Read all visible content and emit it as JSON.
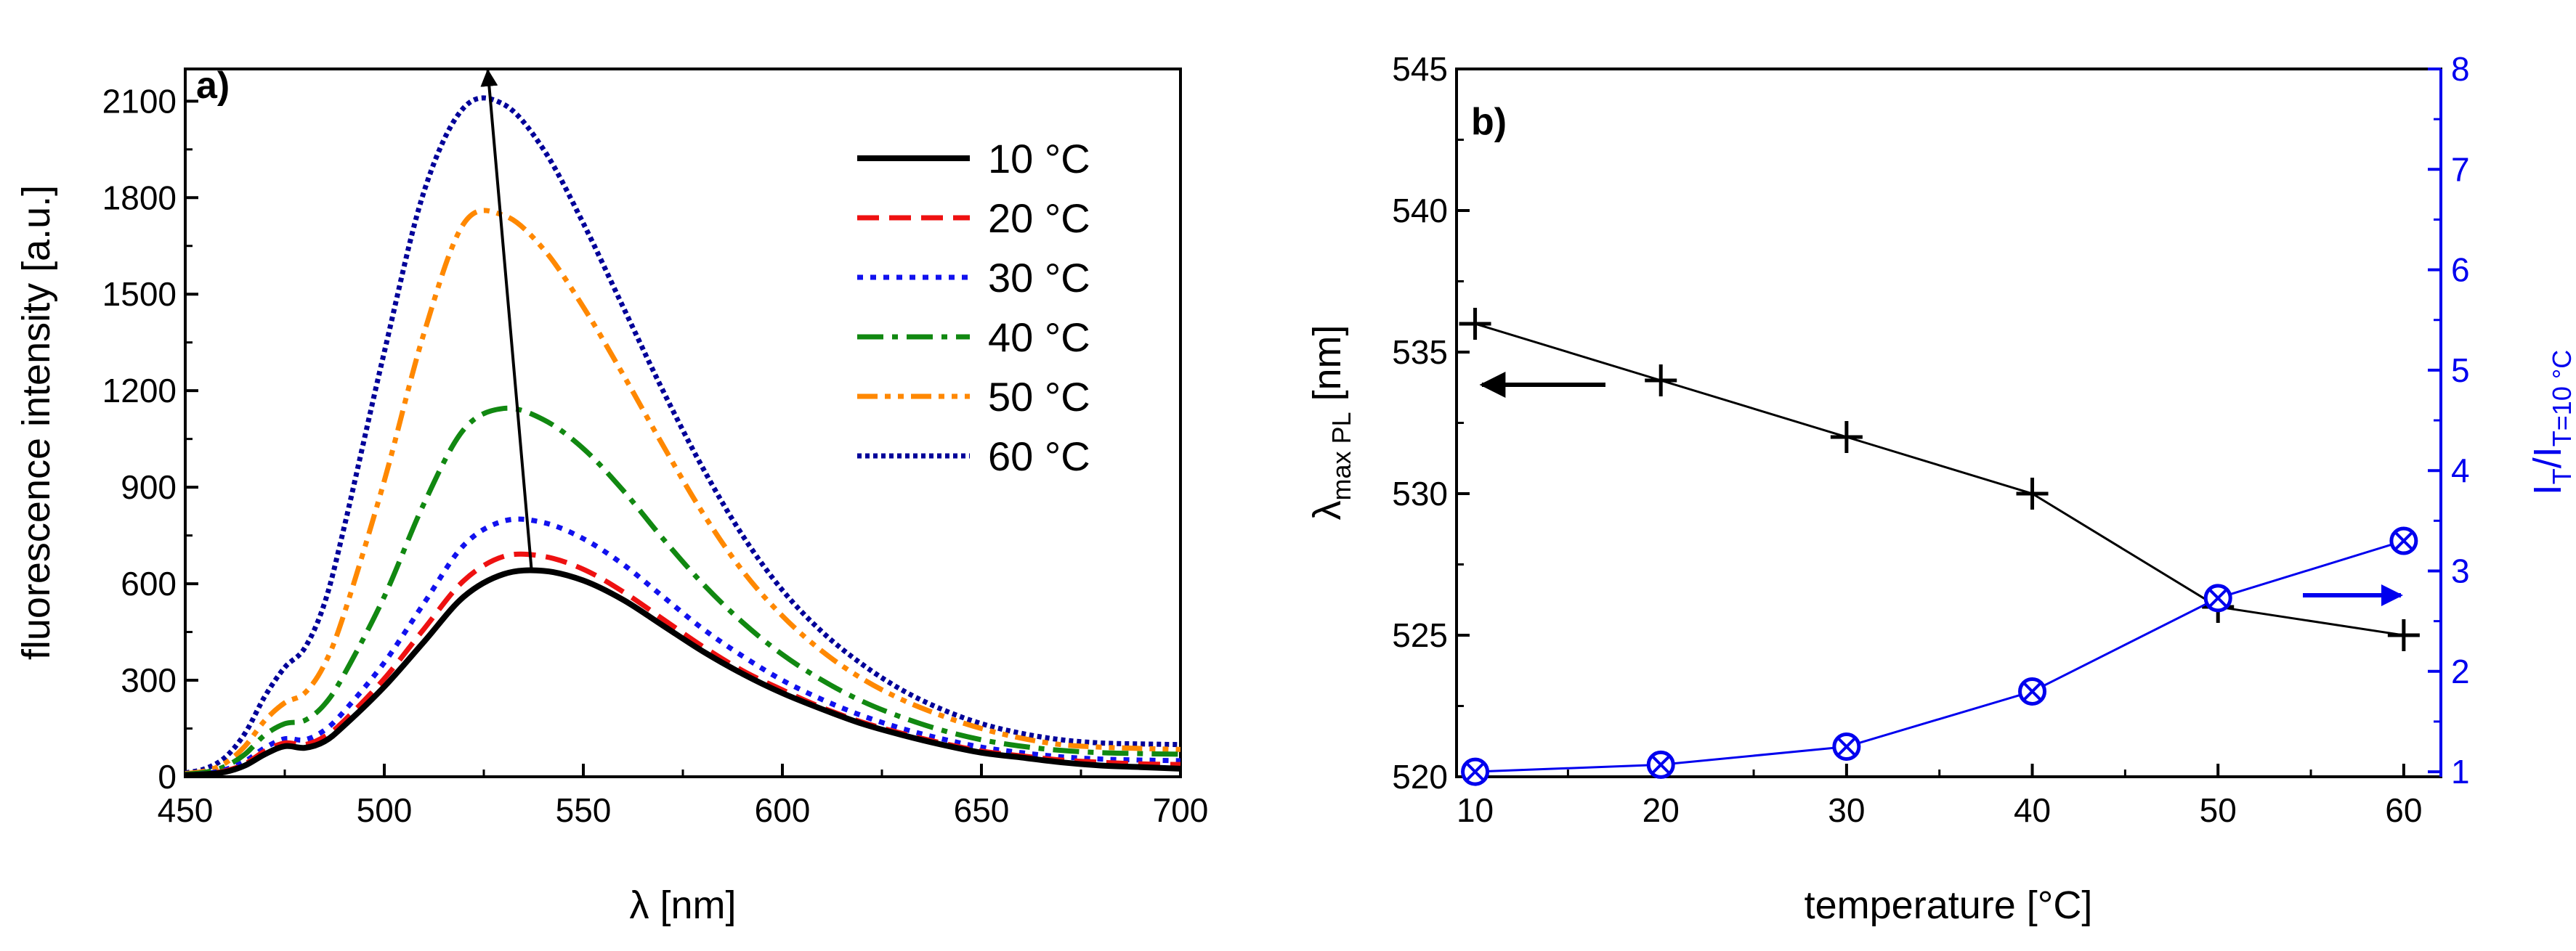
{
  "chart_data": [
    {
      "type": "line",
      "panel_label": "a)",
      "xlabel": "λ [nm]",
      "ylabel": "fluorescence intensity [a.u.]",
      "xlim": [
        450,
        700
      ],
      "ylim": [
        0,
        2200
      ],
      "xticks": [
        450,
        500,
        550,
        600,
        650,
        700
      ],
      "yticks": [
        0,
        300,
        600,
        900,
        1200,
        1500,
        1800,
        2100
      ],
      "x": [
        450,
        455,
        460,
        465,
        470,
        475,
        480,
        485,
        490,
        500,
        510,
        520,
        530,
        540,
        550,
        560,
        570,
        580,
        590,
        600,
        610,
        620,
        630,
        640,
        650,
        660,
        670,
        680,
        690,
        700
      ],
      "series": [
        {
          "name": "10 °C",
          "color": "#000000",
          "style": "solid",
          "values": [
            5,
            8,
            15,
            35,
            70,
            95,
            90,
            110,
            160,
            280,
            420,
            560,
            630,
            640,
            610,
            550,
            470,
            390,
            320,
            260,
            210,
            165,
            130,
            100,
            75,
            60,
            45,
            35,
            30,
            25
          ]
        },
        {
          "name": "20 °C",
          "color": "#ee1111",
          "style": "dash",
          "values": [
            5,
            9,
            18,
            40,
            80,
            105,
            100,
            125,
            175,
            305,
            460,
            610,
            685,
            685,
            645,
            575,
            490,
            405,
            330,
            270,
            215,
            170,
            135,
            105,
            80,
            65,
            52,
            45,
            40,
            38
          ]
        },
        {
          "name": "30 °C",
          "color": "#1111ee",
          "style": "dot",
          "values": [
            6,
            10,
            22,
            48,
            90,
            118,
            115,
            145,
            205,
            355,
            540,
            720,
            795,
            790,
            740,
            660,
            560,
            460,
            375,
            300,
            240,
            190,
            150,
            118,
            92,
            75,
            62,
            55,
            52,
            50
          ]
        },
        {
          "name": "40 °C",
          "color": "#118811",
          "style": "dashdot",
          "values": [
            8,
            14,
            32,
            70,
            130,
            165,
            175,
            225,
            320,
            560,
            850,
            1080,
            1145,
            1110,
            1020,
            890,
            740,
            600,
            480,
            380,
            300,
            235,
            185,
            145,
            115,
            95,
            82,
            75,
            72,
            70
          ]
        },
        {
          "name": "50 °C",
          "color": "#ff8800",
          "style": "dashdotdot",
          "values": [
            10,
            18,
            42,
            95,
            175,
            230,
            260,
            350,
            510,
            920,
            1380,
            1720,
            1745,
            1640,
            1460,
            1250,
            1030,
            820,
            640,
            500,
            390,
            305,
            240,
            190,
            150,
            120,
            100,
            92,
            88,
            85
          ]
        },
        {
          "name": "60 °C",
          "color": "#000099",
          "style": "densedot",
          "values": [
            12,
            25,
            60,
            135,
            250,
            340,
            400,
            540,
            780,
            1320,
            1820,
            2080,
            2090,
            1950,
            1720,
            1460,
            1200,
            960,
            750,
            580,
            450,
            350,
            270,
            210,
            165,
            135,
            115,
            105,
            102,
            100
          ]
        }
      ],
      "annotation": "arrow from (537, 640) to (526, 2200)"
    },
    {
      "type": "scatter",
      "panel_label": "b)",
      "xlabel": "temperature [°C]",
      "ylabel_main": "λ",
      "ylabel_sub": "max PL",
      "ylabel_tail": " [nm]",
      "y2label_main": "I",
      "y2label_sub1": "T",
      "y2label_mid": "/I",
      "y2label_sub2": "T=10 °C",
      "xlim": [
        9,
        62
      ],
      "ylim": [
        520,
        545
      ],
      "y2lim": [
        0.95,
        8
      ],
      "xticks": [
        10,
        20,
        30,
        40,
        50,
        60
      ],
      "yticks": [
        520,
        525,
        530,
        535,
        540,
        545
      ],
      "y2ticks": [
        1,
        2,
        3,
        4,
        5,
        6,
        7,
        8
      ],
      "x": [
        10,
        20,
        30,
        40,
        50,
        60
      ],
      "series": [
        {
          "name": "λmax PL",
          "axis": "left",
          "color": "#000000",
          "marker": "plus",
          "values": [
            536,
            534,
            532,
            530,
            526,
            525
          ]
        },
        {
          "name": "IT/IT=10 °C",
          "axis": "right",
          "color": "#0000ee",
          "marker": "circle-x",
          "values": [
            1.0,
            1.07,
            1.25,
            1.8,
            2.73,
            3.3
          ]
        }
      ]
    }
  ]
}
